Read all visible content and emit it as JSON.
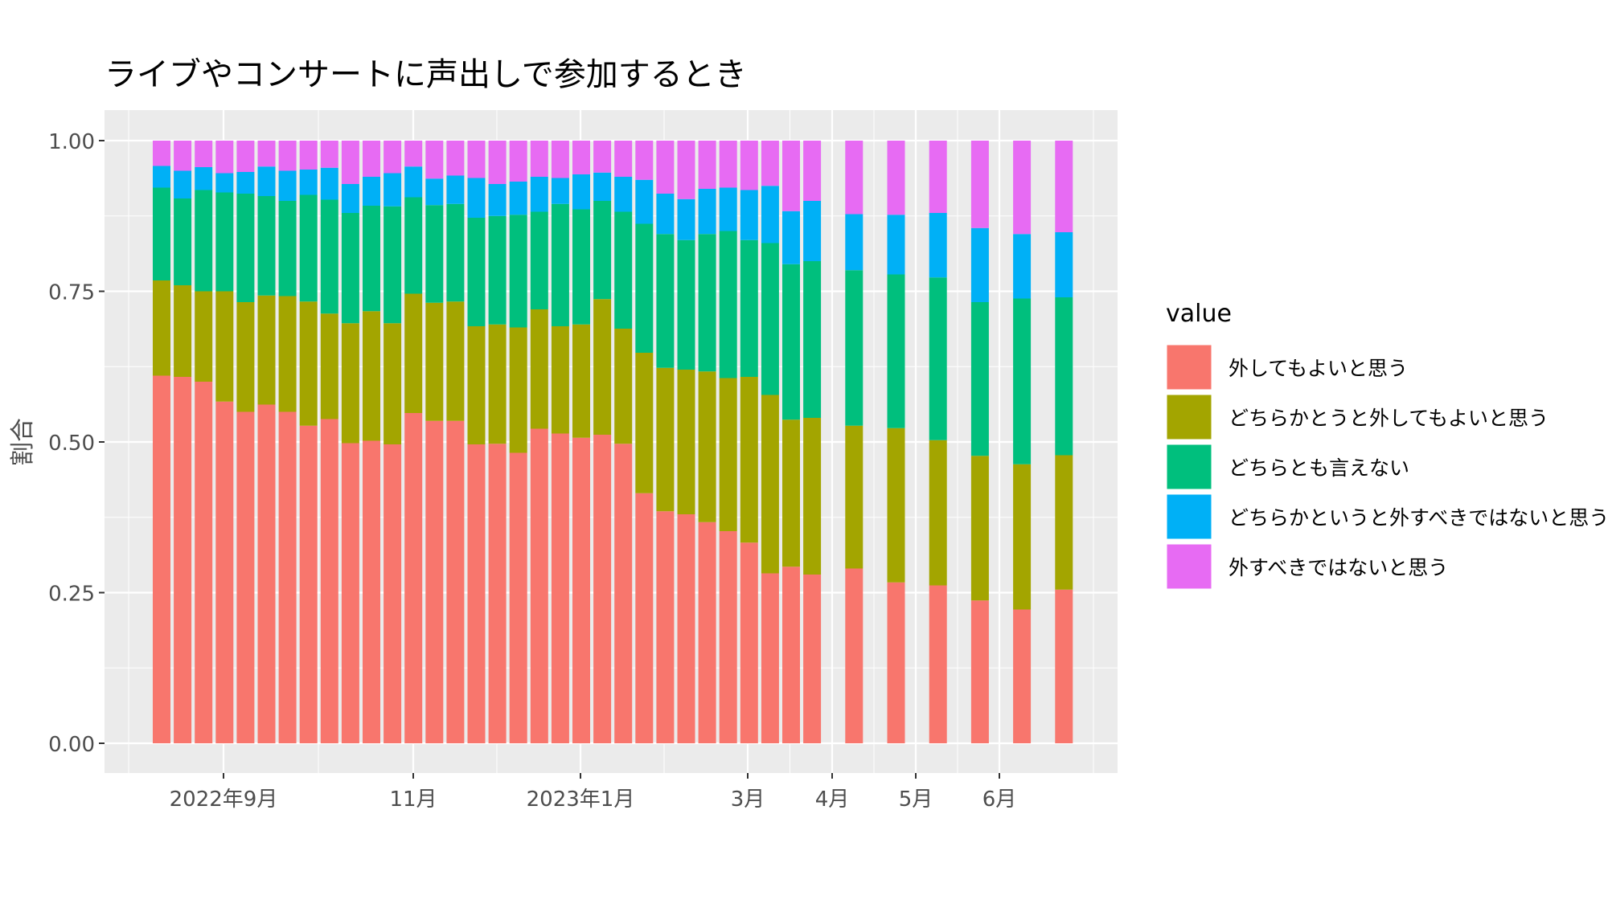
{
  "chart_data": {
    "type": "bar",
    "stacked": true,
    "title": "ライブやコンサートに声出しで参加するとき",
    "xlabel": "",
    "ylabel": "割合",
    "ylim": [
      0,
      1
    ],
    "yticks": [
      "0.00",
      "0.25",
      "0.50",
      "0.75",
      "1.00"
    ],
    "xticks": [
      "2022年9月",
      "11月",
      "2023年1月",
      "3月",
      "4月",
      "5月",
      "6月"
    ],
    "grid": true,
    "legend": {
      "title": "value",
      "position": "right",
      "entries": [
        {
          "label": "外してもよいと思う",
          "color": "#F8766D"
        },
        {
          "label": "どちらかとうと外してもよいと思う",
          "color": "#A3A500"
        },
        {
          "label": "どちらとも言えない",
          "color": "#00BF7D"
        },
        {
          "label": "どちらかというと外すべきではないと思う",
          "color": "#00B0F6"
        },
        {
          "label": "外すべきではないと思う",
          "color": "#E76BF3"
        }
      ]
    },
    "periods": [
      {
        "index": 0,
        "cum": [
          0.61,
          0.768,
          0.922,
          0.958,
          1.0
        ]
      },
      {
        "index": 1,
        "cum": [
          0.608,
          0.76,
          0.904,
          0.95,
          1.0
        ]
      },
      {
        "index": 2,
        "cum": [
          0.6,
          0.75,
          0.918,
          0.956,
          1.0
        ]
      },
      {
        "index": 3,
        "cum": [
          0.567,
          0.75,
          0.914,
          0.946,
          1.0
        ]
      },
      {
        "index": 4,
        "cum": [
          0.55,
          0.732,
          0.912,
          0.948,
          1.0
        ]
      },
      {
        "index": 5,
        "cum": [
          0.562,
          0.743,
          0.908,
          0.957,
          1.0
        ]
      },
      {
        "index": 6,
        "cum": [
          0.55,
          0.742,
          0.9,
          0.95,
          1.0
        ]
      },
      {
        "index": 7,
        "cum": [
          0.527,
          0.733,
          0.91,
          0.952,
          1.0
        ]
      },
      {
        "index": 8,
        "cum": [
          0.538,
          0.713,
          0.902,
          0.955,
          1.0
        ]
      },
      {
        "index": 9,
        "cum": [
          0.498,
          0.697,
          0.88,
          0.928,
          1.0
        ]
      },
      {
        "index": 10,
        "cum": [
          0.502,
          0.717,
          0.892,
          0.94,
          1.0
        ]
      },
      {
        "index": 11,
        "cum": [
          0.496,
          0.697,
          0.891,
          0.946,
          1.0
        ]
      },
      {
        "index": 12,
        "cum": [
          0.548,
          0.746,
          0.906,
          0.957,
          1.0
        ]
      },
      {
        "index": 13,
        "cum": [
          0.535,
          0.731,
          0.893,
          0.937,
          1.0
        ]
      },
      {
        "index": 14,
        "cum": [
          0.535,
          0.733,
          0.895,
          0.942,
          1.0
        ]
      },
      {
        "index": 15,
        "cum": [
          0.496,
          0.692,
          0.872,
          0.938,
          1.0
        ]
      },
      {
        "index": 16,
        "cum": [
          0.497,
          0.695,
          0.875,
          0.928,
          1.0
        ]
      },
      {
        "index": 17,
        "cum": [
          0.482,
          0.69,
          0.877,
          0.932,
          1.0
        ]
      },
      {
        "index": 18,
        "cum": [
          0.522,
          0.72,
          0.882,
          0.94,
          1.0
        ]
      },
      {
        "index": 19,
        "cum": [
          0.514,
          0.692,
          0.895,
          0.938,
          1.0
        ]
      },
      {
        "index": 20,
        "cum": [
          0.507,
          0.695,
          0.886,
          0.944,
          1.0
        ]
      },
      {
        "index": 21,
        "cum": [
          0.512,
          0.737,
          0.9,
          0.947,
          1.0
        ]
      },
      {
        "index": 22,
        "cum": [
          0.497,
          0.688,
          0.882,
          0.94,
          1.0
        ]
      },
      {
        "index": 23,
        "cum": [
          0.415,
          0.648,
          0.862,
          0.935,
          1.0
        ]
      },
      {
        "index": 24,
        "cum": [
          0.385,
          0.623,
          0.845,
          0.912,
          1.0
        ]
      },
      {
        "index": 25,
        "cum": [
          0.38,
          0.62,
          0.835,
          0.903,
          1.0
        ]
      },
      {
        "index": 26,
        "cum": [
          0.367,
          0.617,
          0.845,
          0.92,
          1.0
        ]
      },
      {
        "index": 27,
        "cum": [
          0.352,
          0.606,
          0.85,
          0.922,
          1.0
        ]
      },
      {
        "index": 28,
        "cum": [
          0.333,
          0.608,
          0.835,
          0.918,
          1.0
        ]
      },
      {
        "index": 29,
        "cum": [
          0.282,
          0.578,
          0.83,
          0.925,
          1.0
        ]
      },
      {
        "index": 30,
        "cum": [
          0.293,
          0.537,
          0.795,
          0.883,
          1.0
        ]
      },
      {
        "index": 31,
        "cum": [
          0.28,
          0.54,
          0.8,
          0.9,
          1.0
        ]
      },
      {
        "index": 33,
        "cum": [
          0.29,
          0.527,
          0.785,
          0.878,
          1.0
        ]
      },
      {
        "index": 35,
        "cum": [
          0.267,
          0.523,
          0.778,
          0.877,
          1.0
        ]
      },
      {
        "index": 37,
        "cum": [
          0.262,
          0.503,
          0.773,
          0.88,
          1.0
        ]
      },
      {
        "index": 39,
        "cum": [
          0.237,
          0.477,
          0.732,
          0.855,
          1.0
        ]
      },
      {
        "index": 41,
        "cum": [
          0.222,
          0.463,
          0.738,
          0.845,
          1.0
        ]
      },
      {
        "index": 43,
        "cum": [
          0.255,
          0.478,
          0.74,
          0.848,
          1.0
        ]
      }
    ]
  }
}
